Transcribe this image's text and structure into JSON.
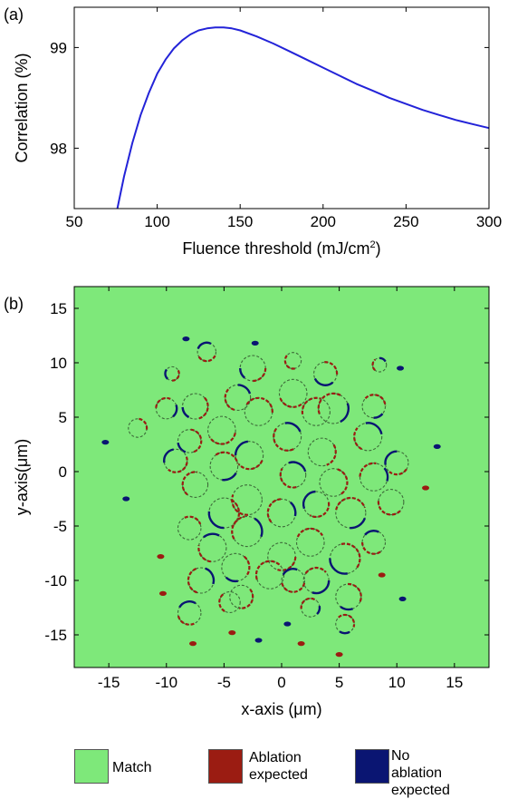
{
  "panel_labels": {
    "a": "(a)",
    "b": "(b)"
  },
  "chart_data": [
    {
      "type": "line",
      "panel": "(a)",
      "xlabel_main": "Fluence threshold (mJ/cm",
      "xlabel_sup": "2",
      "xlabel_close": ")",
      "ylabel": "Correlation (%)",
      "xlim": [
        50,
        300
      ],
      "ylim": [
        97.4,
        99.4
      ],
      "xticks": [
        50,
        100,
        150,
        200,
        250,
        300
      ],
      "xtick_labels": [
        "50",
        "100",
        "150",
        "200",
        "250",
        "300"
      ],
      "yticks": [
        98,
        99
      ],
      "ytick_labels": [
        "98",
        "99"
      ],
      "grid": false,
      "color": "#2323d8",
      "series": [
        {
          "x": [
            76,
            80,
            85,
            90,
            95,
            100,
            105,
            110,
            115,
            120,
            125,
            130,
            135,
            140,
            145,
            150,
            160,
            170,
            180,
            190,
            200,
            210,
            220,
            230,
            240,
            250,
            260,
            270,
            280,
            290,
            300
          ],
          "y": [
            97.4,
            97.72,
            98.05,
            98.33,
            98.55,
            98.74,
            98.88,
            98.99,
            99.07,
            99.13,
            99.17,
            99.19,
            99.2,
            99.2,
            99.19,
            99.17,
            99.11,
            99.04,
            98.96,
            98.88,
            98.8,
            98.72,
            98.64,
            98.57,
            98.5,
            98.44,
            98.38,
            98.33,
            98.28,
            98.24,
            98.2
          ]
        }
      ]
    },
    {
      "type": "heatmap",
      "panel": "(b)",
      "xlabel": "x-axis (μm)",
      "ylabel": "y-axis(μm)",
      "xlim": [
        -18,
        18
      ],
      "ylim": [
        -18,
        17
      ],
      "xticks": [
        -15,
        -10,
        -5,
        0,
        5,
        10,
        15
      ],
      "xtick_labels": [
        "-15",
        "-10",
        "-5",
        "0",
        "5",
        "10",
        "15"
      ],
      "yticks": [
        -15,
        -10,
        -5,
        0,
        5,
        10,
        15
      ],
      "ytick_labels": [
        "-15",
        "-10",
        "-5",
        "0",
        "5",
        "10",
        "15"
      ],
      "background_category": "Match",
      "categories": [
        {
          "name": "Match",
          "color": "#7ee87a"
        },
        {
          "name": "Ablation expected",
          "color": "#9b1c12"
        },
        {
          "name": "No ablation expected",
          "color": "#0a1572"
        }
      ],
      "rings": [
        {
          "x": -2.5,
          "y": 9.5,
          "r": 1.1
        },
        {
          "x": 1.0,
          "y": 7.2,
          "r": 1.2
        },
        {
          "x": -3.8,
          "y": 6.8,
          "r": 1.1
        },
        {
          "x": 4.5,
          "y": 5.8,
          "r": 1.3
        },
        {
          "x": -2.0,
          "y": 5.5,
          "r": 1.2
        },
        {
          "x": 3.8,
          "y": 9.0,
          "r": 1.0
        },
        {
          "x": -7.5,
          "y": 6.0,
          "r": 1.1
        },
        {
          "x": -5.2,
          "y": 3.8,
          "r": 1.2
        },
        {
          "x": 0.5,
          "y": 3.2,
          "r": 1.2
        },
        {
          "x": 7.5,
          "y": 3.2,
          "r": 1.2
        },
        {
          "x": 3.0,
          "y": 5.5,
          "r": 1.2
        },
        {
          "x": 8.0,
          "y": 6.0,
          "r": 1.0
        },
        {
          "x": -8.0,
          "y": 2.8,
          "r": 1.0
        },
        {
          "x": 3.5,
          "y": 1.8,
          "r": 1.2
        },
        {
          "x": -2.8,
          "y": 1.5,
          "r": 1.2
        },
        {
          "x": 1.0,
          "y": -0.3,
          "r": 1.1
        },
        {
          "x": -7.5,
          "y": -1.2,
          "r": 1.1
        },
        {
          "x": 8.0,
          "y": -0.5,
          "r": 1.2
        },
        {
          "x": -5.0,
          "y": 0.5,
          "r": 1.2
        },
        {
          "x": 4.5,
          "y": -1.0,
          "r": 1.2
        },
        {
          "x": -9.2,
          "y": 1.0,
          "r": 1.0
        },
        {
          "x": 10.0,
          "y": 0.8,
          "r": 1.0
        },
        {
          "x": -3.0,
          "y": -2.6,
          "r": 1.3
        },
        {
          "x": 0.0,
          "y": -3.8,
          "r": 1.2
        },
        {
          "x": 6.0,
          "y": -3.8,
          "r": 1.3
        },
        {
          "x": -8.0,
          "y": -5.2,
          "r": 1.0
        },
        {
          "x": -5.0,
          "y": -3.8,
          "r": 1.3
        },
        {
          "x": 3.0,
          "y": -3.0,
          "r": 1.1
        },
        {
          "x": 9.5,
          "y": -2.8,
          "r": 1.1
        },
        {
          "x": -6.0,
          "y": -7.0,
          "r": 1.2
        },
        {
          "x": -3.0,
          "y": -5.5,
          "r": 1.3
        },
        {
          "x": 2.5,
          "y": -6.5,
          "r": 1.2
        },
        {
          "x": 5.5,
          "y": -8.0,
          "r": 1.3
        },
        {
          "x": -4.0,
          "y": -8.8,
          "r": 1.2
        },
        {
          "x": 0.0,
          "y": -7.8,
          "r": 1.2
        },
        {
          "x": 8.0,
          "y": -6.5,
          "r": 1.0
        },
        {
          "x": -7.0,
          "y": -10.0,
          "r": 1.1
        },
        {
          "x": -1.0,
          "y": -9.5,
          "r": 1.2
        },
        {
          "x": 3.0,
          "y": -10.0,
          "r": 1.1
        },
        {
          "x": 5.8,
          "y": -11.5,
          "r": 1.1
        },
        {
          "x": -3.5,
          "y": -11.5,
          "r": 1.0
        },
        {
          "x": 1.0,
          "y": -10.0,
          "r": 1.0
        },
        {
          "x": -8.0,
          "y": -13.0,
          "r": 1.0
        },
        {
          "x": -4.5,
          "y": -12.0,
          "r": 0.9
        },
        {
          "x": 2.5,
          "y": -12.5,
          "r": 0.8
        },
        {
          "x": 5.5,
          "y": -14.0,
          "r": 0.8
        },
        {
          "x": -12.5,
          "y": 4.0,
          "r": 0.8
        },
        {
          "x": -9.5,
          "y": 9.0,
          "r": 0.6
        },
        {
          "x": -6.5,
          "y": 11.0,
          "r": 0.8
        },
        {
          "x": 1.0,
          "y": 10.2,
          "r": 0.7
        },
        {
          "x": 8.5,
          "y": 9.8,
          "r": 0.6
        },
        {
          "x": -10.0,
          "y": 5.8,
          "r": 0.9
        }
      ],
      "blobs": [
        {
          "x": -8.3,
          "y": 12.2,
          "s": "n"
        },
        {
          "x": -2.3,
          "y": 11.8,
          "s": "n"
        },
        {
          "x": 10.3,
          "y": 9.5,
          "s": "n"
        },
        {
          "x": -15.3,
          "y": 2.7,
          "s": "n"
        },
        {
          "x": -13.5,
          "y": -2.5,
          "s": "n"
        },
        {
          "x": 13.5,
          "y": 2.3,
          "s": "n"
        },
        {
          "x": 12.5,
          "y": -1.5,
          "s": "a"
        },
        {
          "x": -10.5,
          "y": -7.8,
          "s": "a"
        },
        {
          "x": -10.3,
          "y": -11.2,
          "s": "a"
        },
        {
          "x": 10.5,
          "y": -11.7,
          "s": "n"
        },
        {
          "x": 8.7,
          "y": -9.5,
          "s": "a"
        },
        {
          "x": -7.7,
          "y": -15.8,
          "s": "a"
        },
        {
          "x": -4.3,
          "y": -14.8,
          "s": "a"
        },
        {
          "x": 0.5,
          "y": -14.0,
          "s": "n"
        },
        {
          "x": 1.7,
          "y": -15.8,
          "s": "a"
        },
        {
          "x": 5.0,
          "y": -16.8,
          "s": "a"
        },
        {
          "x": -2.0,
          "y": -15.5,
          "s": "n"
        }
      ]
    }
  ],
  "legend": [
    {
      "label": "Match",
      "color": "#7ee87a"
    },
    {
      "label_line1": "Ablation",
      "label_line2": "expected",
      "color": "#9b1c12"
    },
    {
      "label_line1": "No ablation",
      "label_line2": "expected",
      "color": "#0a1572"
    }
  ]
}
